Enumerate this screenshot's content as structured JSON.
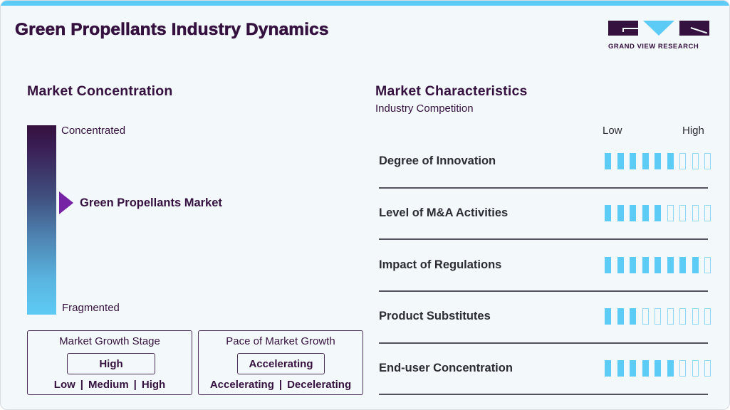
{
  "header": {
    "title": "Green Propellants Industry Dynamics",
    "logo_text": "GRAND VIEW RESEARCH"
  },
  "colors": {
    "brand_dark": "#35113f",
    "accent_blue": "#5ccbf5",
    "marker_purple": "#7623a6",
    "background": "#f3f8fb"
  },
  "market_concentration": {
    "heading": "Market Concentration",
    "top_label": "Concentrated",
    "bottom_label": "Fragmented",
    "marker_label": "Green Propellants Market",
    "marker_position_pct": 42
  },
  "market_growth_stage": {
    "title": "Market Growth Stage",
    "value": "High",
    "options": [
      "Low",
      "Medium",
      "High"
    ]
  },
  "pace_of_market_growth": {
    "title": "Pace of Market Growth",
    "value": "Accelerating",
    "options": [
      "Accelerating",
      "Decelerating"
    ]
  },
  "market_characteristics": {
    "heading": "Market Characteristics",
    "subheading": "Industry Competition",
    "scale_low": "Low",
    "scale_high": "High",
    "max_rating": 9,
    "rows": [
      {
        "label": "Degree of Innovation",
        "rating": 6
      },
      {
        "label": "Level of M&A Activities",
        "rating": 5
      },
      {
        "label": "Impact of Regulations",
        "rating": 8
      },
      {
        "label": "Product Substitutes",
        "rating": 3
      },
      {
        "label": "End-user Concentration",
        "rating": 6
      }
    ]
  }
}
